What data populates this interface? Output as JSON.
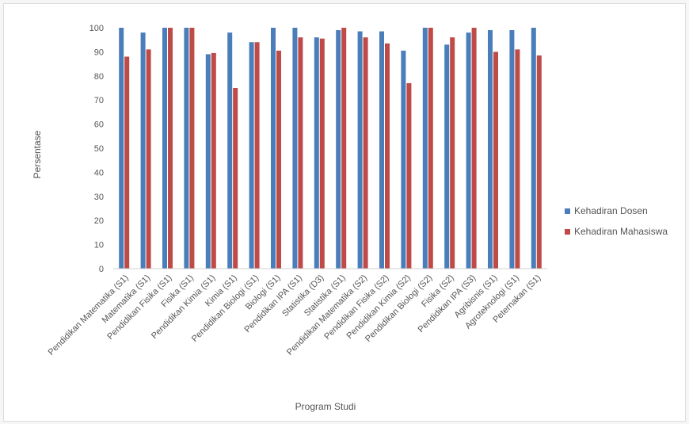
{
  "chart_data": {
    "type": "bar",
    "title": "",
    "xlabel": "Program Studi",
    "ylabel": "Persentase",
    "ylim": [
      0,
      100
    ],
    "ytick_step": 10,
    "grid": false,
    "legend_position": "right",
    "categories": [
      "Pendidikan Matematika (S1)",
      "Matematika (S1)",
      "Pendidikan Fisika (S1)",
      "Fisika (S1)",
      "Pendidikan Kimia (S1)",
      "Kimia (S1)",
      "Pendidikan Biologi (S1)",
      "Biologi (S1)",
      "Pendidikan IPA (S1)",
      "Statistika (D3)",
      "Statistika (S1)",
      "Pendidikan Matematika (S2)",
      "Pendidikan Fisika (S2)",
      "Pendidikan Kimia (S2)",
      "Pendidikan Biologi (S2)",
      "Fisika (S2)",
      "Pendidikan IPA (S3)",
      "Agribisnis (S1)",
      "Agroteknologi (S1)",
      "Peternakan (S1)"
    ],
    "series": [
      {
        "name": "Kehadiran Dosen",
        "color": "#4a7ebb",
        "values": [
          100,
          98,
          100,
          100,
          89,
          98,
          94,
          100,
          100,
          96,
          99,
          98.5,
          98.5,
          90.5,
          100,
          93,
          98,
          99,
          99,
          100
        ]
      },
      {
        "name": "Kehadiran Mahasiswa",
        "color": "#be4b48",
        "values": [
          88,
          91,
          100,
          100,
          89.5,
          75,
          94,
          90.5,
          96,
          95.5,
          100,
          96,
          93.5,
          77,
          100,
          96,
          100,
          90,
          91,
          88.5
        ]
      }
    ]
  }
}
